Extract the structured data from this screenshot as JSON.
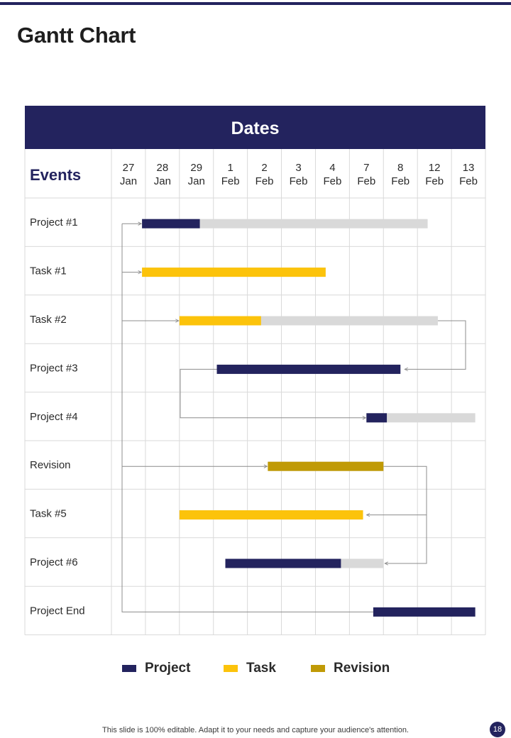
{
  "page": {
    "title": "Gantt Chart",
    "footer_note": "This slide is 100% editable. Adapt it to your needs and capture your audience's attention.",
    "page_number": "18"
  },
  "colors": {
    "navy": "#23235e",
    "task_yellow": "#fcc30b",
    "revision_gold": "#c09a06",
    "remaining_gray": "#d9d9d9",
    "grid": "#d9d9d9",
    "connector": "#8c8c8c"
  },
  "chart_data": {
    "type": "gantt",
    "header": "Dates",
    "events_label": "Events",
    "dates": [
      {
        "day": "27",
        "month": "Jan"
      },
      {
        "day": "28",
        "month": "Jan"
      },
      {
        "day": "29",
        "month": "Jan"
      },
      {
        "day": "1",
        "month": "Feb"
      },
      {
        "day": "2",
        "month": "Feb"
      },
      {
        "day": "3",
        "month": "Feb"
      },
      {
        "day": "4",
        "month": "Feb"
      },
      {
        "day": "7",
        "month": "Feb"
      },
      {
        "day": "8",
        "month": "Feb"
      },
      {
        "day": "12",
        "month": "Feb"
      },
      {
        "day": "13",
        "month": "Feb"
      }
    ],
    "rows": [
      {
        "label": "Project #1",
        "kind": "project",
        "start": 0.9,
        "end": 9.3,
        "progress": 1.7
      },
      {
        "label": "Task #1",
        "kind": "task",
        "start": 0.9,
        "end": 6.3,
        "progress": 5.4
      },
      {
        "label": "Task #2",
        "kind": "task",
        "start": 2.0,
        "end": 9.6,
        "progress": 2.4
      },
      {
        "label": "Project #3",
        "kind": "project",
        "start": 3.1,
        "end": 8.5,
        "progress": 5.4
      },
      {
        "label": "Project #4",
        "kind": "project",
        "start": 7.5,
        "end": 10.7,
        "progress": 0.6
      },
      {
        "label": "Revision",
        "kind": "revision",
        "start": 4.6,
        "end": 8.0,
        "progress": 3.4
      },
      {
        "label": "Task #5",
        "kind": "task",
        "start": 2.0,
        "end": 7.4,
        "progress": 5.4
      },
      {
        "label": "Project #6",
        "kind": "project",
        "start": 3.35,
        "end": 8.0,
        "progress": 3.4
      },
      {
        "label": "Project End",
        "kind": "project",
        "start": 7.7,
        "end": 10.7,
        "progress": 3.0
      }
    ],
    "legend": [
      {
        "label": "Project",
        "kind": "project"
      },
      {
        "label": "Task",
        "kind": "task"
      },
      {
        "label": "Revision",
        "kind": "revision"
      }
    ]
  }
}
